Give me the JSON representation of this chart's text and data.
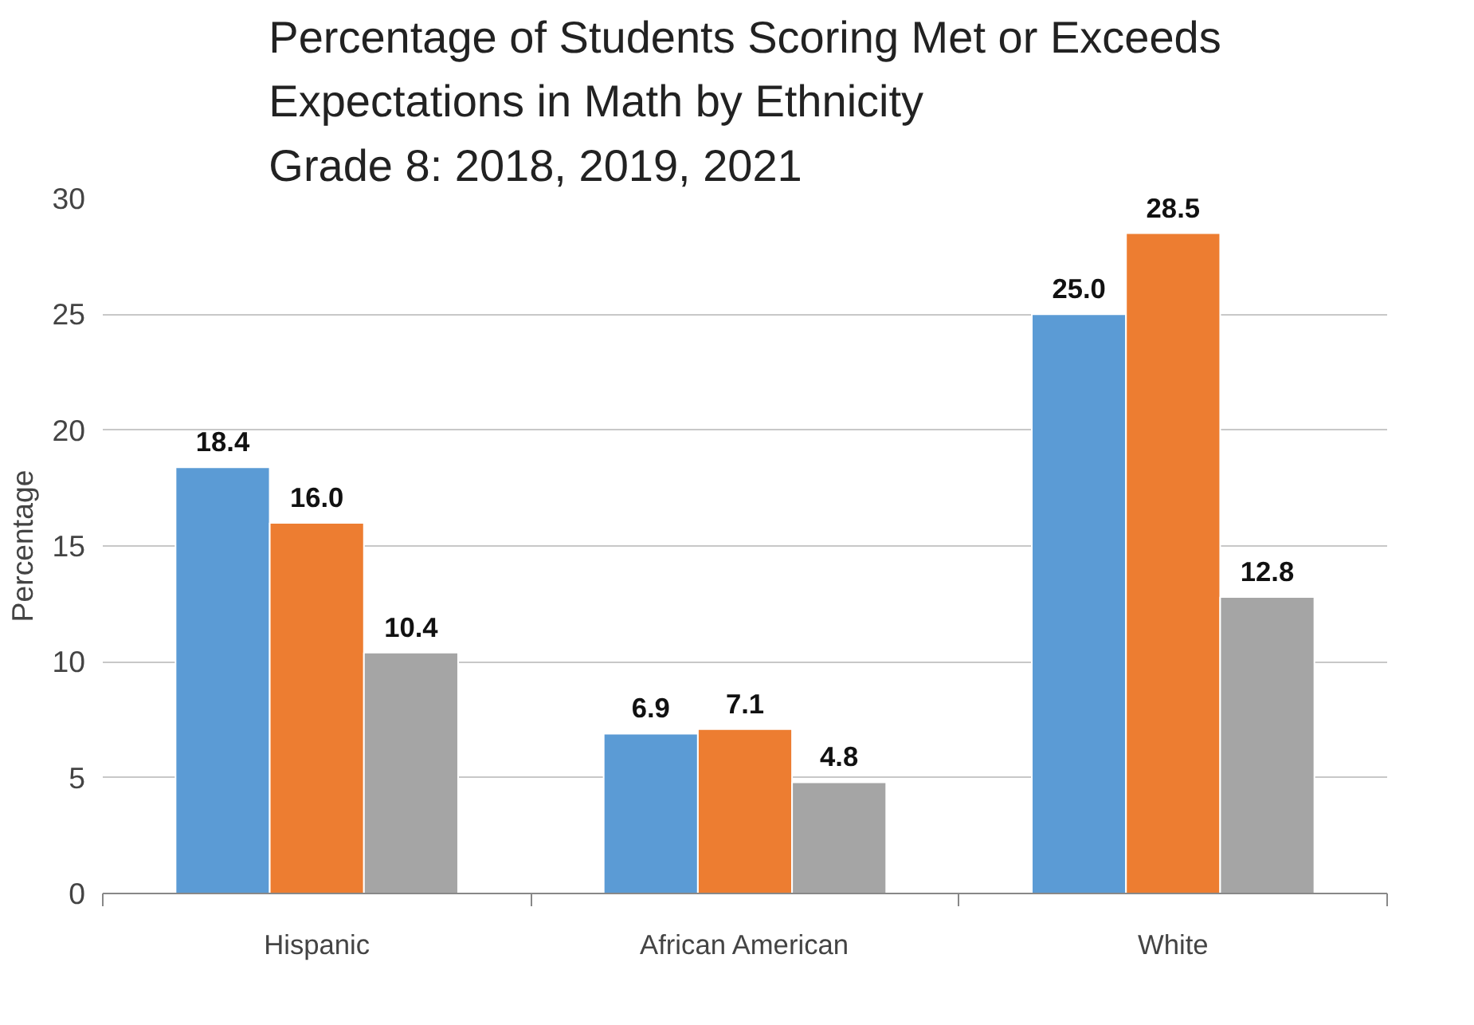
{
  "chart_data": {
    "type": "bar",
    "title": "Percentage of Students Scoring Met or Exceeds\nExpectations in Math by Ethnicity\nGrade 8: 2018, 2019, 2021",
    "ylabel": "Percentage",
    "categories": [
      "Hispanic",
      "African American",
      "White"
    ],
    "series": [
      {
        "color": "#5b9bd5",
        "values": [
          18.4,
          6.9,
          25.0
        ],
        "value_labels": [
          "18.4",
          "6.9",
          "25.0"
        ]
      },
      {
        "color": "#ed7d31",
        "values": [
          16.0,
          7.1,
          28.5
        ],
        "value_labels": [
          "16.0",
          "7.1",
          "28.5"
        ]
      },
      {
        "color": "#a5a5a5",
        "values": [
          10.4,
          4.8,
          12.8
        ],
        "value_labels": [
          "10.4",
          "4.8",
          "12.8"
        ]
      }
    ],
    "ylim": [
      0,
      30
    ],
    "yticks": [
      0,
      5,
      10,
      15,
      20,
      25,
      30
    ],
    "grid": "y"
  }
}
